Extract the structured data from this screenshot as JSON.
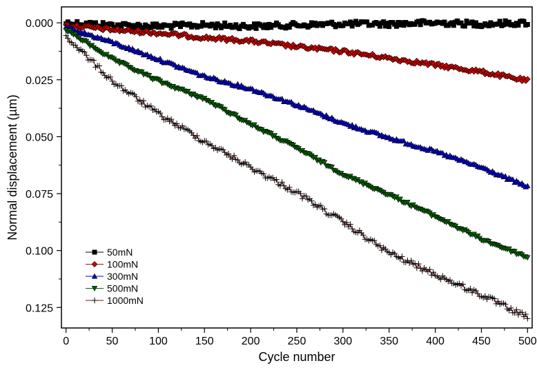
{
  "chart_data": {
    "type": "scatter",
    "title": "",
    "xlabel": "Cycle number",
    "ylabel": "Normal displacement (µm)",
    "xlim": [
      -5,
      505
    ],
    "ylim": [
      0.134,
      -0.007
    ],
    "y_inverted": true,
    "grid": false,
    "legend_position": "bottom-left",
    "x_ticks": [
      0,
      50,
      100,
      150,
      200,
      250,
      300,
      350,
      400,
      450,
      500
    ],
    "x_tick_labels": [
      "0",
      "50",
      "100",
      "150",
      "200",
      "250",
      "300",
      "350",
      "400",
      "450",
      "500"
    ],
    "y_ticks": [
      0.0,
      0.025,
      0.05,
      0.075,
      0.1,
      0.125
    ],
    "y_tick_labels": [
      "0.000",
      "0.025",
      "0.050",
      "0.075",
      "0.100",
      "0.125"
    ],
    "series": [
      {
        "name": "50mN",
        "color": "#000000",
        "marker": "square",
        "x": [
          0,
          50,
          100,
          150,
          200,
          250,
          300,
          350,
          400,
          450,
          500
        ],
        "y": [
          0.0,
          0.001,
          0.0015,
          0.001,
          0.0015,
          0.001,
          0.0005,
          0.0005,
          0.0,
          0.0005,
          0.0
        ]
      },
      {
        "name": "100mN",
        "color": "#cc0000",
        "marker": "diamond",
        "x": [
          0,
          50,
          100,
          150,
          200,
          250,
          300,
          350,
          400,
          450,
          500
        ],
        "y": [
          0.001,
          0.003,
          0.0045,
          0.0065,
          0.008,
          0.0105,
          0.0125,
          0.0155,
          0.0185,
          0.0215,
          0.0255
        ]
      },
      {
        "name": "300mN",
        "color": "#0000cc",
        "marker": "triangle-up",
        "x": [
          0,
          50,
          100,
          150,
          200,
          250,
          300,
          350,
          400,
          450,
          500
        ],
        "y": [
          0.002,
          0.0085,
          0.016,
          0.0235,
          0.029,
          0.036,
          0.044,
          0.0505,
          0.0565,
          0.0635,
          0.072
        ]
      },
      {
        "name": "500mN",
        "color": "#006600",
        "marker": "triangle-down",
        "x": [
          0,
          50,
          100,
          150,
          200,
          250,
          300,
          350,
          400,
          450,
          500
        ],
        "y": [
          0.003,
          0.016,
          0.0255,
          0.0335,
          0.0445,
          0.055,
          0.0665,
          0.0755,
          0.085,
          0.095,
          0.103
        ]
      },
      {
        "name": "1000mN",
        "color": "#990000",
        "marker": "plus",
        "x": [
          0,
          50,
          100,
          150,
          200,
          250,
          300,
          350,
          400,
          450,
          500
        ],
        "y": [
          0.006,
          0.0255,
          0.04,
          0.052,
          0.0635,
          0.0745,
          0.0875,
          0.101,
          0.1105,
          0.1195,
          0.1295
        ]
      }
    ]
  }
}
